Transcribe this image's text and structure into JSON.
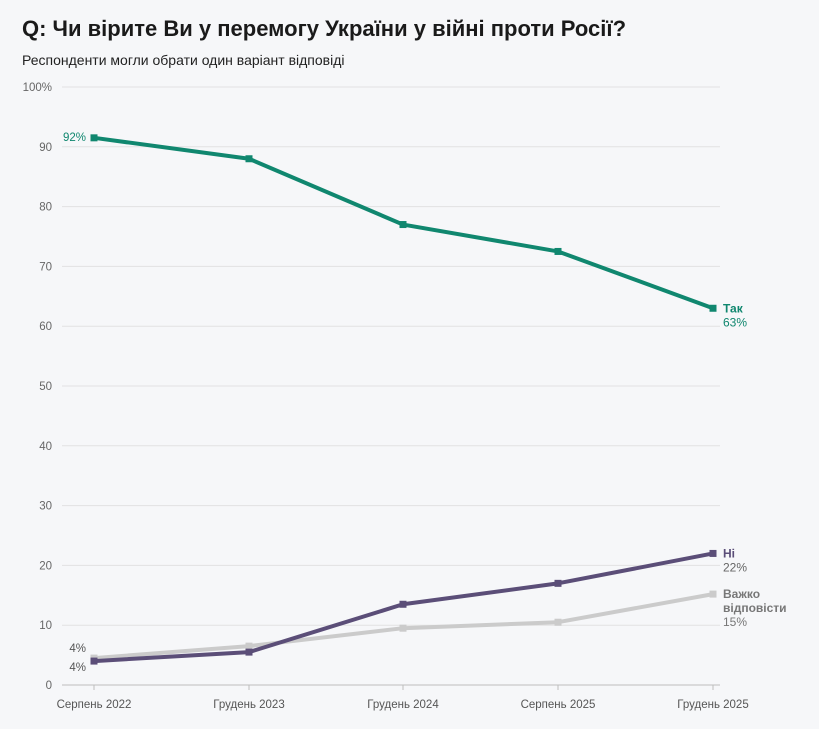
{
  "title": "Q: Чи вірите Ви у перемогу України у війні проти Росії?",
  "subtitle": "Респонденти могли обрати один варіант відповіді",
  "colors": {
    "tak": "#10876f",
    "ni": "#5b4e78",
    "vazhko": "#cbcbcb"
  },
  "chart_data": {
    "type": "line",
    "categories": [
      "Серпень 2022",
      "Грудень 2023",
      "Грудень 2024",
      "Серпень 2025",
      "Грудень 2025"
    ],
    "ylim": [
      0,
      100
    ],
    "yticks": [
      0,
      10,
      20,
      30,
      40,
      50,
      60,
      70,
      80,
      90,
      100
    ],
    "ytick_labels": [
      "0",
      "10",
      "20",
      "30",
      "40",
      "50",
      "60",
      "70",
      "80",
      "90",
      "100%"
    ],
    "series": [
      {
        "name": "Так",
        "color": "#10876f",
        "values": [
          91.5,
          88,
          77,
          72.5,
          63
        ],
        "end_label": "Так",
        "end_value_label": "63%",
        "start_label": "92%"
      },
      {
        "name": "Ні",
        "color": "#5b4e78",
        "values": [
          4,
          5.5,
          13.5,
          17,
          22
        ],
        "end_label": "Ні",
        "end_value_label": "22%",
        "start_label": "4%"
      },
      {
        "name": "Важко відповісти",
        "color": "#cbcbcb",
        "values": [
          4.5,
          6.5,
          9.5,
          10.5,
          15.2
        ],
        "end_label_lines": [
          "Важко",
          "відповісти"
        ],
        "end_value_label": "15%",
        "start_label": "4%"
      }
    ]
  }
}
